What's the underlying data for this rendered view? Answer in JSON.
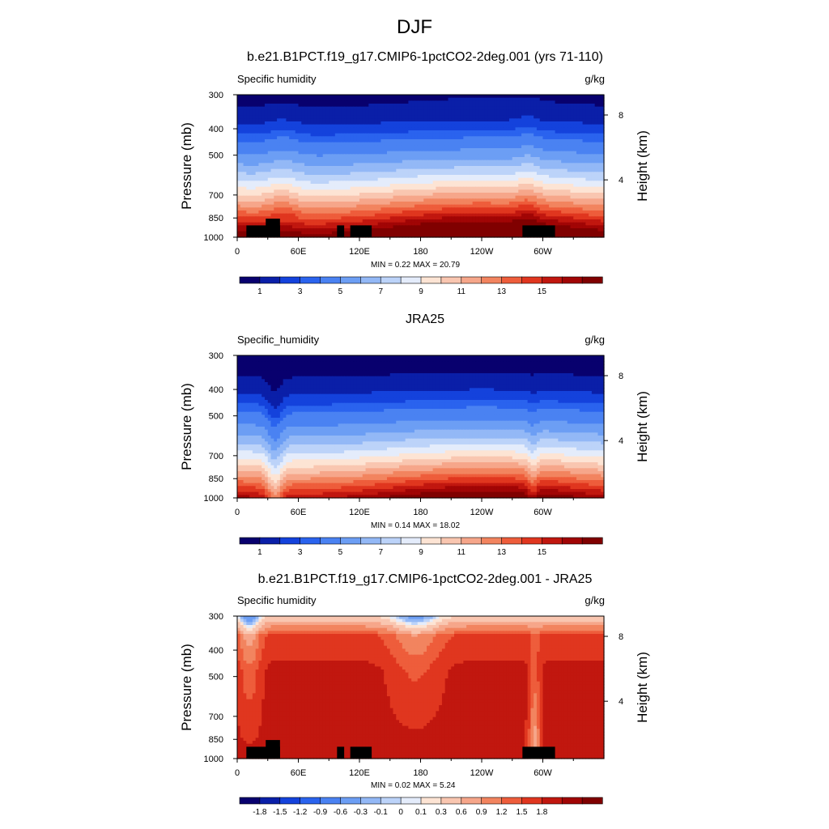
{
  "page_title": "DJF",
  "colors": {
    "absolute_scale": [
      "#08006e",
      "#0a1fa8",
      "#1442dc",
      "#2a63ee",
      "#4a82f2",
      "#6c9ef4",
      "#93b8f6",
      "#bcd3f9",
      "#e4ecfb",
      "#fde4d4",
      "#f9c6b0",
      "#f6a68a",
      "#f2845f",
      "#ee5d3b",
      "#e0361f",
      "#c1170f",
      "#a10505",
      "#800000"
    ],
    "difference_scale": [
      "#08006e",
      "#0a1fa8",
      "#1442dc",
      "#2a63ee",
      "#4a82f2",
      "#6c9ef4",
      "#93b8f6",
      "#bcd3f9",
      "#e4ecfb",
      "#fde4d4",
      "#f9c6b0",
      "#f6a68a",
      "#f2845f",
      "#ee5d3b",
      "#e0361f",
      "#c1170f",
      "#a10505",
      "#800000"
    ],
    "topography": "#000000"
  },
  "chart_data": [
    {
      "type": "heatmap",
      "title": "b.e21.B1PCT.f19_g17.CMIP6-1pctCO2-2deg.001 (yrs 71-110)",
      "left_label": "Specific humidity",
      "units": "g/kg",
      "ylabel": "Pressure (mb)",
      "ylabel_right": "Height (km)",
      "x_ticks": [
        "0",
        "60E",
        "120E",
        "180",
        "120W",
        "60W"
      ],
      "x_range": [
        0,
        360
      ],
      "y_ticks": [
        "300",
        "400",
        "500",
        "700",
        "850",
        "1000"
      ],
      "y_range_mb": [
        300,
        1000
      ],
      "height_ticks": [
        "8",
        "4"
      ],
      "min_max_text": "MIN =   0.22  MAX =  20.79",
      "min": 0.22,
      "max": 20.79,
      "colorbar_labels": [
        "1",
        "3",
        "5",
        "7",
        "9",
        "11",
        "13",
        "15"
      ],
      "field": "model"
    },
    {
      "type": "heatmap",
      "title": "JRA25",
      "left_label": "Specific_humidity",
      "units": "g/kg",
      "ylabel": "Pressure (mb)",
      "ylabel_right": "Height (km)",
      "x_ticks": [
        "0",
        "60E",
        "120E",
        "180",
        "120W",
        "60W"
      ],
      "x_range": [
        0,
        360
      ],
      "y_ticks": [
        "300",
        "400",
        "500",
        "700",
        "850",
        "1000"
      ],
      "y_range_mb": [
        300,
        1000
      ],
      "height_ticks": [
        "8",
        "4"
      ],
      "min_max_text": "MIN =   0.14  MAX =  18.02",
      "min": 0.14,
      "max": 18.02,
      "colorbar_labels": [
        "1",
        "3",
        "5",
        "7",
        "9",
        "11",
        "13",
        "15"
      ],
      "field": "reanalysis"
    },
    {
      "type": "heatmap",
      "title": "b.e21.B1PCT.f19_g17.CMIP6-1pctCO2-2deg.001 - JRA25",
      "left_label": "Specific humidity",
      "units": "g/kg",
      "ylabel": "Pressure (mb)",
      "ylabel_right": "Height (km)",
      "x_ticks": [
        "0",
        "60E",
        "120E",
        "180",
        "120W",
        "60W"
      ],
      "x_range": [
        0,
        360
      ],
      "y_ticks": [
        "300",
        "400",
        "500",
        "700",
        "850",
        "1000"
      ],
      "y_range_mb": [
        300,
        1000
      ],
      "height_ticks": [
        "8",
        "4"
      ],
      "min_max_text": "MIN =   0.02  MAX =   5.24",
      "min": 0.02,
      "max": 5.24,
      "colorbar_labels": [
        "-1.8",
        "-1.5",
        "-1.2",
        "-0.9",
        "-0.6",
        "-0.3",
        "-0.1",
        "0",
        "0.1",
        "0.3",
        "0.6",
        "0.9",
        "1.2",
        "1.5",
        "1.8"
      ],
      "field": "difference"
    }
  ]
}
